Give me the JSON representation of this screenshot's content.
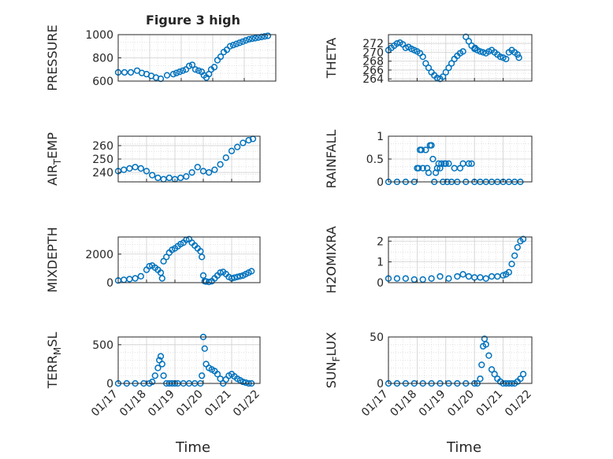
{
  "figure": {
    "title": "Figure 3 high",
    "x_tick_labels": [
      "01/17",
      "01/18",
      "01/19",
      "01/20",
      "01/21",
      "01/22"
    ],
    "x_label": "Time",
    "marker_color": "#0072BD"
  },
  "chart_data": [
    {
      "type": "scatter",
      "title": "Figure 3 high",
      "ylabel": "PRESSURE",
      "ylim": [
        600,
        1000
      ],
      "yticks": [
        600,
        800,
        1000
      ],
      "xlim": [
        0,
        5
      ],
      "grid": true,
      "series": [
        {
          "x": [
            0,
            0.2,
            0.4,
            0.6,
            0.75,
            0.9,
            1.05,
            1.2,
            1.35,
            1.55,
            1.75,
            1.85,
            1.95,
            2.05,
            2.15,
            2.25,
            2.35,
            2.45,
            2.55,
            2.65,
            2.72,
            2.8,
            2.88,
            2.95,
            3.05,
            3.15,
            3.25,
            3.35,
            3.45,
            3.55,
            3.65,
            3.75,
            3.85,
            3.95,
            4.05,
            4.15,
            4.25,
            4.35,
            4.45,
            4.55,
            4.65,
            4.75
          ],
          "y": [
            675,
            675,
            675,
            690,
            670,
            660,
            645,
            630,
            620,
            650,
            660,
            670,
            680,
            690,
            700,
            730,
            740,
            700,
            690,
            680,
            650,
            630,
            660,
            700,
            720,
            780,
            810,
            850,
            870,
            900,
            910,
            920,
            930,
            940,
            950,
            960,
            965,
            970,
            975,
            980,
            985,
            990
          ]
        }
      ]
    },
    {
      "type": "scatter",
      "ylabel": "THETA",
      "ylim": [
        263.5,
        274
      ],
      "yticks": [
        264,
        266,
        268,
        270,
        272
      ],
      "xlim": [
        0,
        5
      ],
      "grid": true,
      "series": [
        {
          "x": [
            0,
            0.1,
            0.2,
            0.3,
            0.4,
            0.5,
            0.6,
            0.7,
            0.8,
            0.9,
            1.0,
            1.1,
            1.2,
            1.3,
            1.4,
            1.5,
            1.6,
            1.7,
            1.8,
            1.9,
            2.0,
            2.1,
            2.2,
            2.3,
            2.4,
            2.5,
            2.6,
            2.7,
            2.8,
            2.9,
            3.0,
            3.02,
            3.1,
            3.2,
            3.3,
            3.4,
            3.5,
            3.6,
            3.7,
            3.8,
            3.9,
            4.0,
            4.1,
            4.2,
            4.3,
            4.4,
            4.5,
            4.55
          ],
          "y": [
            270.5,
            271,
            271.5,
            272,
            272.2,
            271.8,
            271,
            271.2,
            270.8,
            270.5,
            270.2,
            269.8,
            269,
            267.5,
            266.5,
            265.5,
            264.8,
            264.2,
            264,
            264.5,
            265.5,
            266.5,
            267.5,
            268.5,
            269.2,
            269.8,
            270.2,
            273.5,
            272.5,
            271.5,
            270.8,
            271,
            270.5,
            270.2,
            270,
            269.8,
            270.2,
            270.5,
            270,
            269.5,
            269,
            268.8,
            268.5,
            270,
            270.5,
            270,
            269.5,
            268.8
          ]
        }
      ]
    },
    {
      "type": "scatter",
      "ylabel": "AIR_TEMP",
      "ylim": [
        233,
        267
      ],
      "yticks": [
        240,
        250,
        260
      ],
      "xlim": [
        0,
        5
      ],
      "grid": true,
      "series": [
        {
          "x": [
            0,
            0.2,
            0.4,
            0.6,
            0.8,
            1.0,
            1.2,
            1.4,
            1.6,
            1.8,
            2.0,
            2.2,
            2.4,
            2.6,
            2.8,
            3.0,
            3.2,
            3.4,
            3.6,
            3.8,
            4.0,
            4.2,
            4.4,
            4.6,
            4.75
          ],
          "y": [
            241,
            242,
            243,
            244,
            243,
            241,
            238,
            236,
            235,
            236,
            235,
            236,
            237,
            240,
            244,
            241,
            240,
            242,
            246,
            251,
            256,
            259,
            262,
            264,
            265
          ]
        }
      ]
    },
    {
      "type": "scatter",
      "ylabel": "RAINFALL",
      "ylim": [
        0,
        1
      ],
      "yticks": [
        0,
        0.5,
        1
      ],
      "xlim": [
        0,
        5
      ],
      "grid": true,
      "series": [
        {
          "x": [
            0,
            0.3,
            0.6,
            0.9,
            1.0,
            1.05,
            1.1,
            1.15,
            1.2,
            1.3,
            1.35,
            1.4,
            1.45,
            1.5,
            1.55,
            1.6,
            1.65,
            1.7,
            1.75,
            1.8,
            1.85,
            1.9,
            1.95,
            2.0,
            2.05,
            2.1,
            2.2,
            2.3,
            2.4,
            2.5,
            2.6,
            2.7,
            2.8,
            2.9,
            3.0,
            3.2,
            3.4,
            3.6,
            3.8,
            4.0,
            4.2,
            4.4,
            4.6
          ],
          "y": [
            0,
            0,
            0,
            0,
            0.3,
            0.3,
            0.7,
            0.7,
            0.3,
            0.7,
            0.3,
            0.2,
            0.8,
            0.8,
            0.5,
            0,
            0.2,
            0.3,
            0.4,
            0.3,
            0.4,
            0,
            0.4,
            0.4,
            0,
            0.4,
            0,
            0.3,
            0,
            0.3,
            0.4,
            0,
            0.4,
            0.4,
            0,
            0,
            0,
            0,
            0,
            0,
            0,
            0,
            0
          ]
        }
      ]
    },
    {
      "type": "scatter",
      "ylabel": "MIXDEPTH",
      "ylim": [
        0,
        3200
      ],
      "yticks": [
        0,
        2000
      ],
      "xlim": [
        0,
        5
      ],
      "grid": true,
      "series": [
        {
          "x": [
            0,
            0.2,
            0.4,
            0.6,
            0.8,
            1.0,
            1.1,
            1.2,
            1.3,
            1.4,
            1.5,
            1.55,
            1.6,
            1.7,
            1.8,
            1.9,
            2.0,
            2.1,
            2.2,
            2.3,
            2.4,
            2.5,
            2.6,
            2.7,
            2.8,
            2.9,
            2.95,
            3.0,
            3.05,
            3.1,
            3.2,
            3.3,
            3.4,
            3.5,
            3.6,
            3.7,
            3.8,
            3.9,
            4.0,
            4.1,
            4.2,
            4.3,
            4.4,
            4.5,
            4.6,
            4.7
          ],
          "y": [
            150,
            200,
            250,
            300,
            450,
            900,
            1150,
            1200,
            1050,
            900,
            700,
            300,
            1500,
            1800,
            2100,
            2300,
            2400,
            2550,
            2700,
            2800,
            3000,
            3050,
            2800,
            2600,
            2400,
            2200,
            1800,
            500,
            100,
            80,
            50,
            100,
            300,
            500,
            700,
            750,
            600,
            400,
            300,
            350,
            400,
            450,
            500,
            600,
            700,
            800
          ]
        }
      ]
    },
    {
      "type": "scatter",
      "ylabel": "H2OMIXRA",
      "ylim": [
        0,
        2.2
      ],
      "yticks": [
        0,
        1,
        2
      ],
      "xlim": [
        0,
        5
      ],
      "grid": true,
      "series": [
        {
          "x": [
            0,
            0.3,
            0.6,
            0.9,
            1.2,
            1.5,
            1.8,
            2.1,
            2.4,
            2.6,
            2.8,
            3.0,
            3.2,
            3.4,
            3.6,
            3.8,
            4.0,
            4.1,
            4.2,
            4.3,
            4.4,
            4.5,
            4.6,
            4.7
          ],
          "y": [
            0.2,
            0.2,
            0.2,
            0.15,
            0.15,
            0.2,
            0.3,
            0.2,
            0.3,
            0.4,
            0.3,
            0.25,
            0.25,
            0.2,
            0.3,
            0.3,
            0.35,
            0.4,
            0.5,
            0.9,
            1.3,
            1.7,
            2.0,
            2.1
          ]
        }
      ]
    },
    {
      "type": "scatter",
      "ylabel": "TERR_MSL",
      "ylim": [
        0,
        600
      ],
      "yticks": [
        0,
        500
      ],
      "xlim": [
        0,
        5
      ],
      "grid": true,
      "series": [
        {
          "x": [
            0,
            0.3,
            0.6,
            0.9,
            1.1,
            1.2,
            1.3,
            1.4,
            1.45,
            1.5,
            1.55,
            1.6,
            1.7,
            1.8,
            1.9,
            2.0,
            2.1,
            2.3,
            2.5,
            2.7,
            2.9,
            2.95,
            3.0,
            3.05,
            3.1,
            3.2,
            3.3,
            3.4,
            3.5,
            3.6,
            3.7,
            3.8,
            3.9,
            4.0,
            4.1,
            4.2,
            4.3,
            4.4,
            4.5,
            4.6,
            4.7
          ],
          "y": [
            0,
            0,
            0,
            0,
            0,
            20,
            100,
            200,
            300,
            350,
            250,
            100,
            0,
            0,
            0,
            0,
            0,
            0,
            0,
            0,
            0,
            100,
            600,
            450,
            250,
            200,
            180,
            160,
            120,
            60,
            0,
            50,
            100,
            120,
            90,
            60,
            40,
            20,
            10,
            0,
            0
          ]
        }
      ]
    },
    {
      "type": "scatter",
      "ylabel": "SUN_FLUX",
      "ylim": [
        0,
        50
      ],
      "yticks": [
        0,
        50
      ],
      "xlim": [
        0,
        5
      ],
      "grid": true,
      "series": [
        {
          "x": [
            0,
            0.3,
            0.6,
            0.9,
            1.2,
            1.5,
            1.8,
            2.1,
            2.4,
            2.7,
            3.0,
            3.1,
            3.2,
            3.25,
            3.3,
            3.35,
            3.4,
            3.5,
            3.6,
            3.7,
            3.8,
            3.9,
            4.0,
            4.1,
            4.2,
            4.3,
            4.4,
            4.5,
            4.6,
            4.7
          ],
          "y": [
            0,
            0,
            0,
            0,
            0,
            0,
            0,
            0,
            0,
            0,
            0,
            0,
            5,
            20,
            40,
            48,
            42,
            30,
            15,
            10,
            5,
            2,
            0,
            0,
            0,
            0,
            0,
            2,
            5,
            10
          ]
        }
      ]
    }
  ]
}
